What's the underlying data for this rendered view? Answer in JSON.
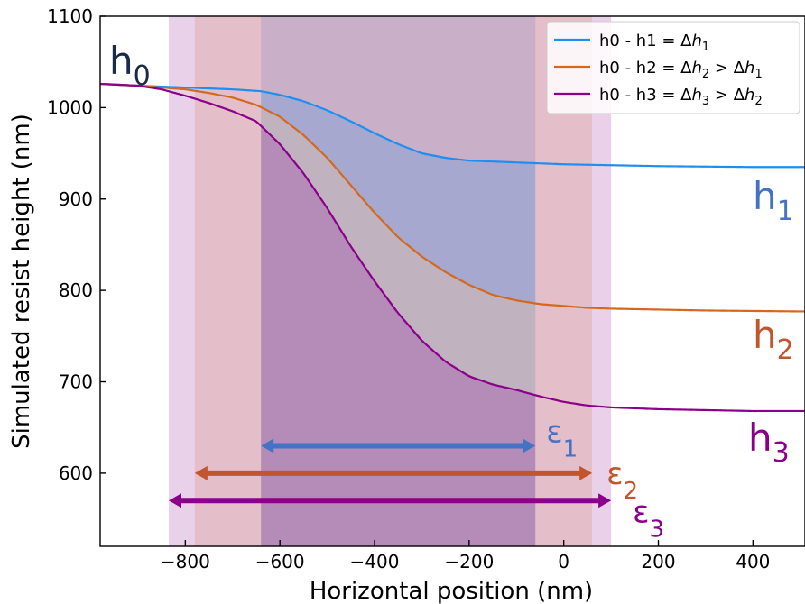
{
  "chart_data": {
    "type": "line",
    "xlabel": "Horizontal position (nm)",
    "ylabel": "Simulated resist height (nm)",
    "xlim": [
      -980,
      510
    ],
    "ylim": [
      520,
      1100
    ],
    "xticks": [
      -800,
      -600,
      -400,
      -200,
      0,
      200,
      400
    ],
    "xtick_labels": [
      "−800",
      "−600",
      "−400",
      "−200",
      "0",
      "200",
      "400"
    ],
    "yticks": [
      600,
      700,
      800,
      900,
      1000,
      1100
    ],
    "ytick_labels": [
      "600",
      "700",
      "800",
      "900",
      "1000",
      "1100"
    ],
    "grid": false,
    "legend_position": "top-right",
    "series": [
      {
        "name": "h0 - h1 = Δh1",
        "legend": {
          "pre": "h0 - h1 = Δ",
          "it": "h",
          "sub": "1",
          "rest": ""
        },
        "color": "#1f8ef1",
        "x": [
          -980,
          -900,
          -800,
          -700,
          -640,
          -600,
          -550,
          -500,
          -450,
          -400,
          -350,
          -300,
          -250,
          -200,
          -150,
          -100,
          -50,
          0,
          100,
          200,
          300,
          400,
          500
        ],
        "y": [
          1026,
          1024,
          1022,
          1020,
          1018,
          1014,
          1007,
          997,
          985,
          972,
          960,
          950,
          945,
          942,
          941,
          940,
          939,
          938,
          937,
          936,
          935.5,
          935,
          935
        ]
      },
      {
        "name": "h0 - h2 = Δh2 > Δh1",
        "legend": {
          "pre": "h0 - h2 = Δ",
          "it": "h",
          "sub": "2",
          "rest": " > Δh1"
        },
        "color": "#d2691e",
        "x": [
          -980,
          -900,
          -800,
          -750,
          -700,
          -650,
          -600,
          -550,
          -500,
          -450,
          -400,
          -350,
          -300,
          -250,
          -200,
          -150,
          -100,
          -50,
          0,
          50,
          100,
          200,
          300,
          400,
          500
        ],
        "y": [
          1026,
          1024,
          1020,
          1016,
          1011,
          1003,
          990,
          970,
          945,
          915,
          885,
          858,
          837,
          820,
          806,
          795,
          789,
          785,
          783,
          781,
          780,
          779,
          778,
          777.5,
          777
        ]
      },
      {
        "name": "h0 - h3 = Δh3 > Δh2",
        "legend": {
          "pre": "h0 - h3 = Δ",
          "it": "h",
          "sub": "3",
          "rest": " > Δh2"
        },
        "color": "#8b008b",
        "x": [
          -980,
          -900,
          -850,
          -800,
          -750,
          -700,
          -650,
          -600,
          -550,
          -500,
          -450,
          -400,
          -350,
          -300,
          -250,
          -200,
          -150,
          -100,
          -50,
          0,
          50,
          100,
          200,
          300,
          400,
          500
        ],
        "y": [
          1026,
          1024,
          1020,
          1013,
          1005,
          996,
          985,
          960,
          928,
          890,
          848,
          810,
          775,
          745,
          722,
          706,
          697,
          691,
          684,
          678,
          674,
          672,
          670,
          669,
          668,
          668
        ]
      }
    ],
    "bands": [
      {
        "x0": -640,
        "x1": -60,
        "color": "#1f8ef1",
        "opacity": 0.2
      },
      {
        "x0": -780,
        "x1": 60,
        "color": "#e07a2c",
        "opacity": 0.2
      },
      {
        "x0": -835,
        "x1": 100,
        "color": "#a64ca6",
        "opacity": 0.25
      }
    ],
    "arrows": [
      {
        "x0": -640,
        "x1": -60,
        "y": 630,
        "color": "#4472c4",
        "label": {
          "base": "ε",
          "sub": "1"
        }
      },
      {
        "x0": -780,
        "x1": 60,
        "y": 600,
        "color": "#c0552e",
        "label": {
          "base": "ε",
          "sub": "2"
        }
      },
      {
        "x0": -835,
        "x1": 100,
        "y": 570,
        "color": "#8b008b",
        "label": {
          "base": "ε",
          "sub": "3"
        }
      }
    ],
    "curve_labels": [
      {
        "base": "h",
        "sub": "0",
        "color": "#1a2a4a"
      },
      {
        "base": "h",
        "sub": "1",
        "color": "#4472c4"
      },
      {
        "base": "h",
        "sub": "2",
        "color": "#c0552e"
      },
      {
        "base": "h",
        "sub": "3",
        "color": "#8b008b"
      }
    ]
  }
}
